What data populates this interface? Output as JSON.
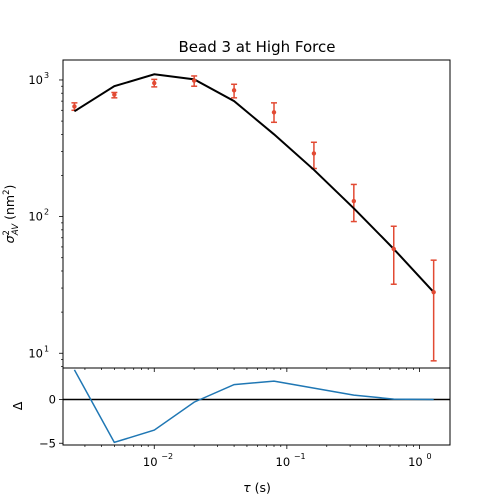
{
  "chart_data": [
    {
      "type": "line",
      "title": "Bead 3 at High Force",
      "ylabel_main": "σ",
      "ylabel_sup": "2",
      "ylabel_sub": "AV",
      "ylabel_unit": " (nm",
      "ylabel_unit_sup": "2",
      "ylabel_close": ")",
      "xscale": "log",
      "yscale": "log",
      "xlim": [
        0.00205,
        1.7
      ],
      "ylim": [
        7.8,
        1400
      ],
      "y_tick_mantissa": "10",
      "y_ticks": [
        {
          "value": 10,
          "exp": "1"
        },
        {
          "value": 100,
          "exp": "2"
        },
        {
          "value": 1000,
          "exp": "3"
        }
      ],
      "model_color": "#000000",
      "data_color": "#e24a33",
      "series": [
        {
          "kind": "model",
          "x": [
            0.0025,
            0.005,
            0.01,
            0.02,
            0.04,
            0.08,
            0.16,
            0.32,
            0.64,
            1.28
          ],
          "y": [
            590,
            900,
            1100,
            1010,
            700,
            400,
            220,
            115,
            58,
            28
          ]
        },
        {
          "kind": "measured",
          "x": [
            0.0025,
            0.005,
            0.01,
            0.02,
            0.04,
            0.08,
            0.16,
            0.32,
            0.64,
            1.28
          ],
          "y": [
            640,
            780,
            950,
            990,
            840,
            580,
            290,
            130,
            58,
            28
          ],
          "err_low": [
            600,
            740,
            890,
            900,
            740,
            490,
            225,
            92,
            32,
            8.8
          ],
          "err_high": [
            680,
            810,
            1010,
            1070,
            930,
            680,
            350,
            172,
            85,
            48
          ]
        }
      ]
    },
    {
      "type": "line",
      "xlabel_main": "τ",
      "xlabel_unit": " (s)",
      "ylabel": "Δ",
      "xscale": "log",
      "xlim": [
        0.00205,
        1.7
      ],
      "ylim": [
        -5.2,
        3.6
      ],
      "y_ticks": [
        {
          "value": -5,
          "label": "−5"
        },
        {
          "value": 0,
          "label": "0"
        }
      ],
      "x_tick_mantissa": "10",
      "x_ticks": [
        {
          "value": 0.01,
          "exp": "−2"
        },
        {
          "value": 0.1,
          "exp": "−1"
        },
        {
          "value": 1,
          "exp": "0"
        }
      ],
      "residual_color": "#1f77b4",
      "zero_line_color": "#000000",
      "series": [
        {
          "kind": "residual",
          "x": [
            0.0025,
            0.005,
            0.01,
            0.02,
            0.04,
            0.08,
            0.16,
            0.32,
            0.64,
            1.28
          ],
          "y": [
            3.4,
            -4.9,
            -3.5,
            -0.3,
            1.7,
            2.1,
            1.3,
            0.5,
            0.05,
            0.0
          ]
        }
      ]
    }
  ]
}
